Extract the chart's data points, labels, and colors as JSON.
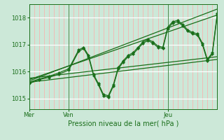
{
  "bg_color": "#cce8d8",
  "grid_color_main": "#ffffff",
  "grid_color_red": "#ffaaaa",
  "line_color": "#1a6e1a",
  "xlabel": "Pression niveau de la mer( hPa )",
  "ylim": [
    1014.6,
    1018.5
  ],
  "yticks": [
    1015,
    1016,
    1017,
    1018
  ],
  "xtick_labels": [
    "Mer",
    "Ven",
    "Jeu"
  ],
  "xtick_positions": [
    0,
    16,
    56
  ],
  "xmax": 76,
  "smooth_lines": [
    [
      [
        0,
        1015.65
      ],
      [
        76,
        1018.32
      ]
    ],
    [
      [
        0,
        1015.7
      ],
      [
        76,
        1018.1
      ]
    ],
    [
      [
        0,
        1015.75
      ],
      [
        76,
        1016.55
      ]
    ],
    [
      [
        0,
        1015.6
      ],
      [
        76,
        1016.45
      ]
    ]
  ],
  "wiggly_series": [
    [
      0,
      1015.55,
      4,
      1015.7,
      8,
      1015.78,
      12,
      1015.9,
      16,
      1016.05,
      20,
      1016.75,
      22,
      1016.85,
      24,
      1016.55,
      26,
      1015.85,
      28,
      1015.5,
      30,
      1015.1,
      32,
      1015.05,
      34,
      1015.45,
      36,
      1016.1,
      38,
      1016.35,
      40,
      1016.55,
      42,
      1016.65,
      44,
      1016.85,
      46,
      1017.05,
      48,
      1017.15,
      50,
      1017.05,
      52,
      1016.9,
      54,
      1016.85,
      56,
      1017.6,
      58,
      1017.8,
      60,
      1017.85,
      62,
      1017.7,
      64,
      1017.5,
      66,
      1017.4,
      68,
      1017.35,
      70,
      1017.0,
      72,
      1016.4,
      74,
      1016.65,
      76,
      1018.1
    ],
    [
      0,
      1015.6,
      4,
      1015.72,
      8,
      1015.82,
      12,
      1015.95,
      16,
      1016.1,
      20,
      1016.8,
      22,
      1016.9,
      24,
      1016.6,
      26,
      1015.9,
      28,
      1015.55,
      30,
      1015.15,
      32,
      1015.1,
      34,
      1015.5,
      36,
      1016.15,
      38,
      1016.4,
      40,
      1016.6,
      42,
      1016.7,
      44,
      1016.9,
      46,
      1017.1,
      48,
      1017.2,
      50,
      1017.1,
      52,
      1016.95,
      54,
      1016.9,
      56,
      1017.65,
      58,
      1017.85,
      60,
      1017.9,
      62,
      1017.75,
      64,
      1017.55,
      66,
      1017.45,
      68,
      1017.4,
      70,
      1017.05,
      72,
      1016.45,
      74,
      1016.7,
      76,
      1018.15
    ]
  ]
}
